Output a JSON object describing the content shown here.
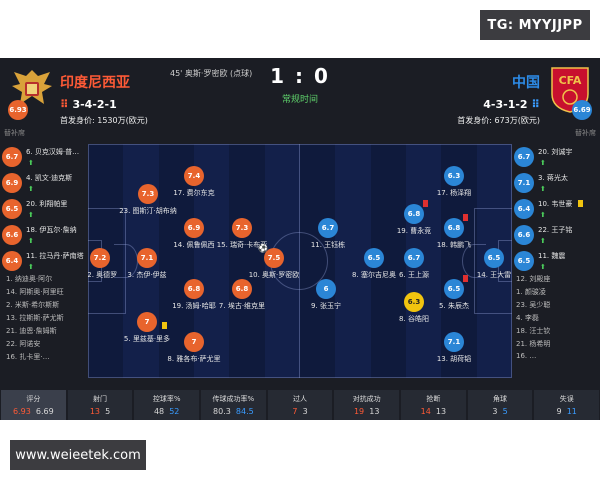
{
  "watermark_top": "TG: MYYJJPP",
  "watermark_bottom": "www.weieetek.com",
  "colors": {
    "home": "#e8642d",
    "away": "#2b86d6",
    "pitch": "#101b3e",
    "status": "#5fd26b"
  },
  "header": {
    "home": {
      "name": "印度尼西亚",
      "formation": "3-4-2-1",
      "value": "首发身价: 1530万(欧元)",
      "rating": "6.93"
    },
    "away": {
      "name": "中国",
      "formation": "4-3-1-2",
      "value": "首发身价: 673万(欧元)",
      "rating": "6.69"
    },
    "score": "1 : 0",
    "status": "常规时间",
    "goal_event": "45' 奥斯·罗密欧 (点球)"
  },
  "home_bench": {
    "title": "替补席",
    "subs": [
      {
        "rating": "6.7",
        "name": "6. 贝克汉姆·普…"
      },
      {
        "rating": "6.9",
        "name": "4. 凯文·迪克斯"
      },
      {
        "rating": "6.5",
        "name": "20. 利翔帕里"
      },
      {
        "rating": "6.6",
        "name": "18. 伊瓦尔·詹纳"
      },
      {
        "rating": "6.4",
        "name": "11. 拉马丹·萨南塔"
      }
    ],
    "reserves": [
      "1. 纳迪奥·阿尔",
      "14. 阿斯奥·阿里旺",
      "2. 米斯·希尔斯斯",
      "13. 拉斯斯·萨尤斯",
      "21. 迪恩·詹姆斯",
      "22. 阿诺安",
      "16. 扎卡里·…"
    ]
  },
  "away_bench": {
    "title": "替补席",
    "subs": [
      {
        "rating": "6.7",
        "name": "20. 刘诚宇"
      },
      {
        "rating": "7.1",
        "name": "3. 蒋光太"
      },
      {
        "rating": "6.4",
        "name": "10. 韦世豪"
      },
      {
        "rating": "6.6",
        "name": "22. 王子铭"
      },
      {
        "rating": "6.5",
        "name": "11. 魏震"
      }
    ],
    "reserves": [
      "12. 刘殿座",
      "1. 颜骏凌",
      "23. 吴少聪",
      "4. 李磊",
      "18. 汪士钦",
      "21. 杨希明",
      "16. …"
    ]
  },
  "home_players": [
    {
      "num_name": "12. 奥德罗",
      "rating": "7.2",
      "card": "",
      "sub": ""
    },
    {
      "num_name": "3. 杰伊·伊兹",
      "rating": "7.1",
      "card": "",
      "sub": ""
    },
    {
      "num_name": "23. 图斯汀·胡布纳",
      "rating": "7.3",
      "card": "",
      "sub": ""
    },
    {
      "num_name": "19. 汤姆·哈耶",
      "rating": "6.8",
      "card": "",
      "sub": ""
    },
    {
      "num_name": "5. 里兹基·里多",
      "rating": "7",
      "card": "yellow",
      "sub": ""
    },
    {
      "num_name": "17. 费尔东克",
      "rating": "7.4",
      "card": "",
      "sub": ""
    },
    {
      "num_name": "14. 佩鲁佩西",
      "rating": "6.9",
      "card": "",
      "sub": ""
    },
    {
      "num_name": "8. 雅各布·萨尤里",
      "rating": "7",
      "card": "",
      "sub": ""
    },
    {
      "num_name": "15. 瑞奇·卡布亚",
      "rating": "7.3",
      "card": "",
      "sub": ""
    },
    {
      "num_name": "7. 埃古·维克里",
      "rating": "6.8",
      "card": "",
      "sub": ""
    },
    {
      "num_name": "10. 奥斯·罗密欧",
      "rating": "7.5",
      "card": "",
      "sub": "ball"
    }
  ],
  "away_players": [
    {
      "num_name": "14. 王大雷",
      "rating": "6.5",
      "card": "",
      "sub": ""
    },
    {
      "num_name": "17. 杨泽翔",
      "rating": "6.3",
      "card": "",
      "sub": ""
    },
    {
      "num_name": "18. 韩鹏飞",
      "rating": "6.8",
      "card": "red",
      "sub": ""
    },
    {
      "num_name": "5. 朱辰杰",
      "rating": "6.5",
      "card": "red",
      "sub": ""
    },
    {
      "num_name": "13. 胡荷韬",
      "rating": "7.1",
      "card": "",
      "sub": ""
    },
    {
      "num_name": "19. 曹永竞",
      "rating": "6.8",
      "card": "red",
      "sub": ""
    },
    {
      "num_name": "6. 王上源",
      "rating": "6.7",
      "card": "",
      "sub": ""
    },
    {
      "num_name": "8. 谷皓阳",
      "rating": "6.3",
      "card": "yellow",
      "sub": ""
    },
    {
      "num_name": "8. 塞尔吉尼奥",
      "rating": "6.5",
      "card": "",
      "sub": ""
    },
    {
      "num_name": "11. 王钰栋",
      "rating": "6.7",
      "card": "",
      "sub": ""
    },
    {
      "num_name": "9. 张玉宁",
      "rating": "6",
      "card": "",
      "sub": ""
    }
  ],
  "stats": [
    {
      "label": "评分",
      "home": "6.93",
      "away": "6.69"
    },
    {
      "label": "射门",
      "home": "13",
      "away": "5"
    },
    {
      "label": "控球率%",
      "home": "48",
      "away": "52"
    },
    {
      "label": "传球成功率%",
      "home": "80.3",
      "away": "84.5"
    },
    {
      "label": "过人",
      "home": "7",
      "away": "3"
    },
    {
      "label": "对抗成功",
      "home": "19",
      "away": "13"
    },
    {
      "label": "抢断",
      "home": "14",
      "away": "13"
    },
    {
      "label": "角球",
      "home": "3",
      "away": "5"
    },
    {
      "label": "失误",
      "home": "9",
      "away": "11"
    }
  ]
}
